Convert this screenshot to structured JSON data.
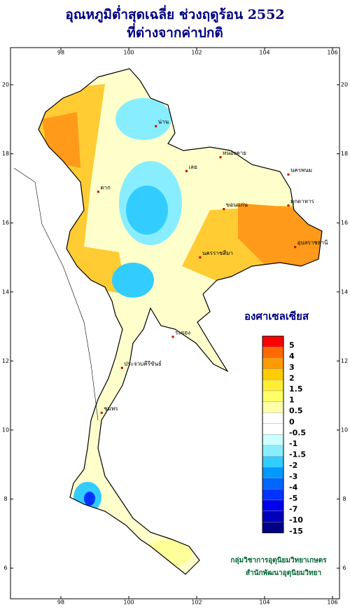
{
  "title": [
    "อุณหภูมิต่ำสุดเฉลี่ย ช่วงฤดูร้อน 2552",
    "ที่ต่างจากค่าปกติ"
  ],
  "lon_ticks": [
    98,
    100,
    102,
    104,
    106
  ],
  "lat_ticks": [
    6,
    8,
    10,
    12,
    14,
    16,
    18,
    20
  ],
  "legend": {
    "title": "องศาเซลเซียส",
    "bins": [
      {
        "value": 5,
        "color": "#ff0000"
      },
      {
        "value": 4,
        "color": "#ff6a00"
      },
      {
        "value": 3,
        "color": "#ff9a00"
      },
      {
        "value": 2,
        "color": "#ffcc00"
      },
      {
        "value": 1.5,
        "color": "#ffee33"
      },
      {
        "value": 1,
        "color": "#ffff66"
      },
      {
        "value": 0.5,
        "color": "#ffffaa"
      },
      {
        "value": 0,
        "color": "#ffffff"
      },
      {
        "value": -0.5,
        "color": "#ffffff"
      },
      {
        "value": -1,
        "color": "#ccffff"
      },
      {
        "value": -1.5,
        "color": "#88eeff"
      },
      {
        "value": -2,
        "color": "#33ccff"
      },
      {
        "value": -3,
        "color": "#0099ff"
      },
      {
        "value": -4,
        "color": "#0066ff"
      },
      {
        "value": -5,
        "color": "#0033ff"
      },
      {
        "value": -7,
        "color": "#0000ee"
      },
      {
        "value": -10,
        "color": "#0000bb"
      },
      {
        "value": -15,
        "color": "#000088"
      }
    ]
  },
  "provinces": [
    {
      "name": "น่าน",
      "lon": 100.8,
      "lat": 18.8
    },
    {
      "name": "ตาก",
      "lon": 99.1,
      "lat": 16.9
    },
    {
      "name": "เลย",
      "lon": 101.7,
      "lat": 17.5
    },
    {
      "name": "หนองคาย",
      "lon": 102.7,
      "lat": 17.9
    },
    {
      "name": "นครพนม",
      "lon": 104.7,
      "lat": 17.4
    },
    {
      "name": "มุกดาหาร",
      "lon": 104.7,
      "lat": 16.5
    },
    {
      "name": "ขอนแก่น",
      "lon": 102.8,
      "lat": 16.4
    },
    {
      "name": "นครราชสีมา",
      "lon": 102.1,
      "lat": 15.0
    },
    {
      "name": "อุบลราชธานี",
      "lon": 104.9,
      "lat": 15.3
    },
    {
      "name": "ระยอง",
      "lon": 101.3,
      "lat": 12.7
    },
    {
      "name": "ประจวบคีรีขันธ์",
      "lon": 99.8,
      "lat": 11.8
    },
    {
      "name": "ชุมพร",
      "lon": 99.2,
      "lat": 10.5
    }
  ],
  "credits": [
    "กลุ่มวิชาการอุตุนิยมวิทยาเกษตร",
    "สำนักพัฒนาอุตุนิยมวิทยา"
  ]
}
